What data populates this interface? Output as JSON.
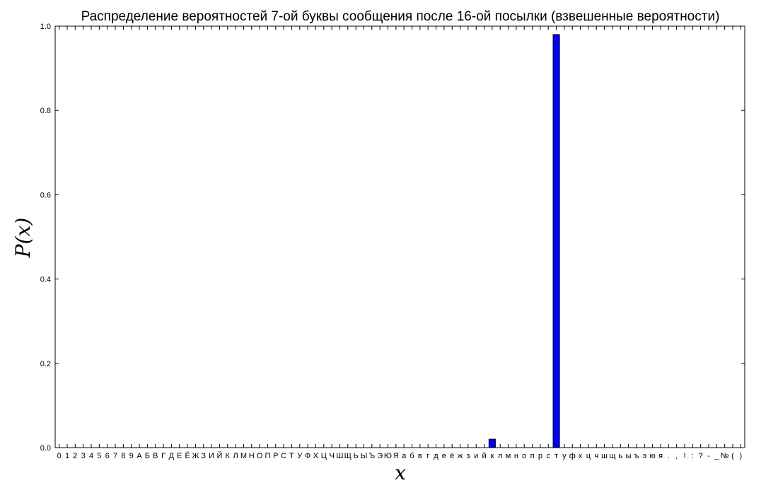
{
  "chart_data": {
    "type": "bar",
    "title": "Распределение вероятностей 7-ой буквы сообщения после 16-ой посылки (взвешенные вероятности)",
    "xlabel": "x",
    "ylabel": "P(x)",
    "ylim": [
      0,
      1.0
    ],
    "yticks": [
      "0.0",
      "0.2",
      "0.4",
      "0.6",
      "0.8",
      "1.0"
    ],
    "categories": [
      "0",
      "1",
      "2",
      "3",
      "4",
      "5",
      "6",
      "7",
      "8",
      "9",
      "А",
      "Б",
      "В",
      "Г",
      "Д",
      "Е",
      "Ё",
      "Ж",
      "З",
      "И",
      "Й",
      "К",
      "Л",
      "М",
      "Н",
      "О",
      "П",
      "Р",
      "С",
      "Т",
      "У",
      "Ф",
      "Х",
      "Ц",
      "Ч",
      "Ш",
      "Щ",
      "Ь",
      "Ы",
      "Ъ",
      "Э",
      "Ю",
      "Я",
      "а",
      "б",
      "в",
      "г",
      "д",
      "е",
      "ё",
      "ж",
      "з",
      "и",
      "й",
      "к",
      "л",
      "м",
      "н",
      "о",
      "п",
      "р",
      "с",
      "т",
      "у",
      "ф",
      "х",
      "ц",
      "ч",
      "ш",
      "щ",
      "ь",
      "ы",
      "ъ",
      "э",
      "ю",
      "я",
      ".",
      ",",
      "!",
      ":",
      "?",
      "-",
      "_",
      "№",
      "(",
      ")"
    ],
    "values": [
      0,
      0,
      0,
      0,
      0,
      0,
      0,
      0,
      0,
      0,
      0,
      0,
      0,
      0,
      0,
      0,
      0,
      0,
      0,
      0,
      0,
      0,
      0,
      0,
      0,
      0,
      0,
      0,
      0,
      0,
      0,
      0,
      0,
      0,
      0,
      0,
      0,
      0,
      0,
      0,
      0,
      0,
      0,
      0,
      0,
      0,
      0,
      0,
      0,
      0,
      0,
      0,
      0,
      0,
      0.02,
      0,
      0,
      0,
      0,
      0,
      0,
      0,
      0.98,
      0,
      0,
      0,
      0,
      0,
      0,
      0,
      0,
      0,
      0,
      0,
      0,
      0,
      0,
      0,
      0,
      0,
      0,
      0,
      0,
      0,
      0,
      0
    ],
    "grid": false,
    "bar_color": "#0000ff"
  }
}
